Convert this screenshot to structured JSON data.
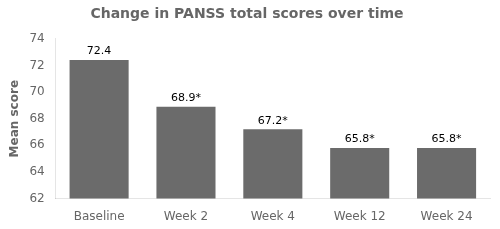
{
  "chart_data": {
    "type": "bar",
    "title": "Change in PANSS total scores over time",
    "ylabel": "Mean score",
    "categories": [
      "Baseline",
      "Week 2",
      "Week 4",
      "Week 12",
      "Week 24"
    ],
    "values": [
      72.4,
      68.9,
      67.2,
      65.8,
      65.8
    ],
    "value_labels": [
      "72.4",
      "68.9*",
      "67.2*",
      "65.8*",
      "65.8*"
    ],
    "data_labels": true,
    "color": "#6b6b6b",
    "ylim": [
      62,
      74
    ],
    "yticks": [
      62,
      64,
      66,
      68,
      70,
      72,
      74
    ],
    "grid": false
  }
}
